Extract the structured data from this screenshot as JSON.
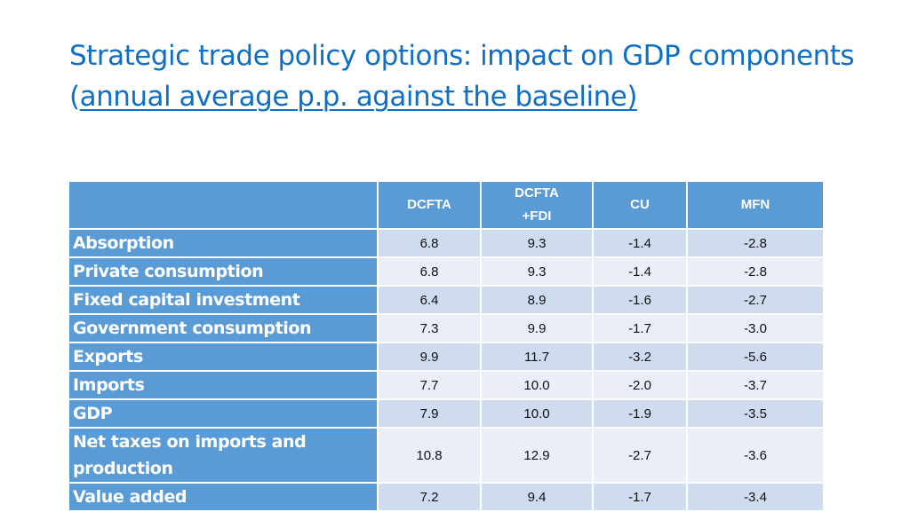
{
  "slide": {
    "title_part1": "Strategic trade policy options: impact on GDP components (",
    "title_part2": "annual average p.p. against the baseline)"
  },
  "table": {
    "headers": [
      "",
      "DCFTA",
      "DCFTA +FDI",
      "CU",
      "MFN"
    ],
    "rows": [
      {
        "label": "Absorption",
        "values": [
          "6.8",
          "9.3",
          "-1.4",
          "-2.8"
        ]
      },
      {
        "label": "Private consumption",
        "values": [
          "6.8",
          "9.3",
          "-1.4",
          "-2.8"
        ]
      },
      {
        "label": "Fixed capital investment",
        "values": [
          "6.4",
          "8.9",
          "-1.6",
          "-2.7"
        ]
      },
      {
        "label": "Government consumption",
        "values": [
          "7.3",
          "9.9",
          "-1.7",
          "-3.0"
        ]
      },
      {
        "label": "Exports",
        "values": [
          "9.9",
          "11.7",
          "-3.2",
          "-5.6"
        ]
      },
      {
        "label": "Imports",
        "values": [
          "7.7",
          "10.0",
          "-2.0",
          "-3.7"
        ]
      },
      {
        "label": "GDP",
        "values": [
          "7.9",
          "10.0",
          "-1.9",
          "-3.5"
        ]
      },
      {
        "label": "Net taxes on imports and production",
        "values": [
          "10.8",
          "12.9",
          "-2.7",
          "-3.6"
        ]
      },
      {
        "label": "Value added",
        "values": [
          "7.2",
          "9.4",
          "-1.7",
          "-3.4"
        ]
      }
    ]
  }
}
